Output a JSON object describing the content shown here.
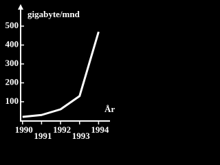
{
  "chart_data": {
    "type": "line",
    "title": "gigabyte/mnd",
    "x_label": "År",
    "x": [
      1990,
      1991,
      1992,
      1993,
      1994
    ],
    "series": [
      {
        "name": "gigabyte/mnd",
        "color": "#ffffff",
        "values": [
          20,
          30,
          60,
          130,
          470
        ]
      }
    ],
    "xlim": [
      1989.9,
      1994.6
    ],
    "xticks": [
      1990,
      1991,
      1992,
      1993,
      1994
    ],
    "ylim": [
      0,
      600
    ],
    "yticks": [
      100,
      200,
      300,
      400,
      500
    ],
    "grid": false
  }
}
